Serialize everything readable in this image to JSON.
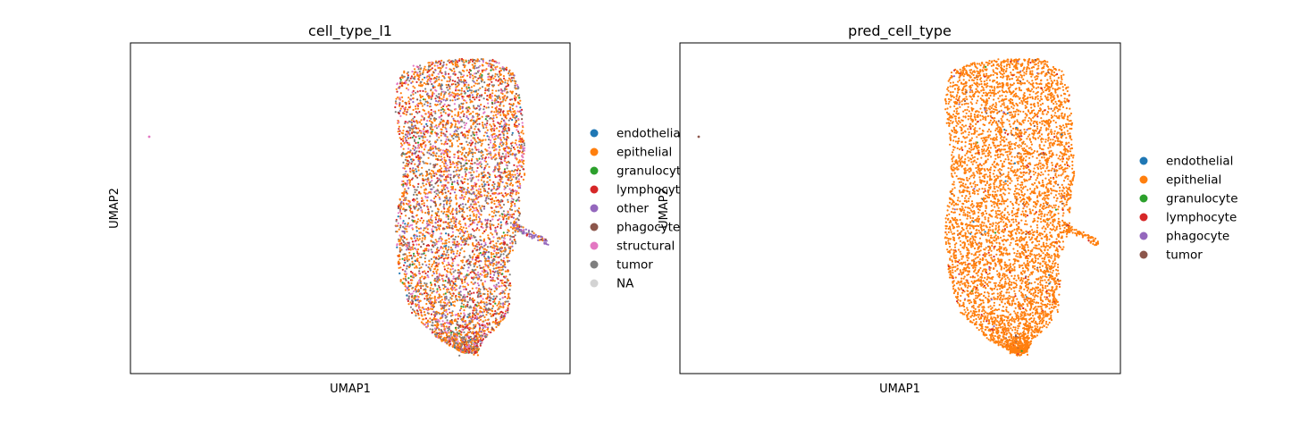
{
  "chart_data": [
    {
      "type": "scatter",
      "title": "cell_type_l1",
      "xlabel": "UMAP1",
      "ylabel": "UMAP2",
      "grid": false,
      "axis_ticks": false,
      "legend_placement": "right",
      "legend": [
        {
          "name": "endothelial",
          "color": "#1f77b4"
        },
        {
          "name": "epithelial",
          "color": "#ff7f0e"
        },
        {
          "name": "granulocyte",
          "color": "#2ca02c"
        },
        {
          "name": "lymphocyte",
          "color": "#d62728"
        },
        {
          "name": "other",
          "color": "#9467bd"
        },
        {
          "name": "phagocyte",
          "color": "#8c564b"
        },
        {
          "name": "structural",
          "color": "#e377c2"
        },
        {
          "name": "tumor",
          "color": "#7f7f7f"
        },
        {
          "name": "NA",
          "color": "#d3d3d3"
        }
      ],
      "mix_weights": [
        1,
        38,
        1,
        12,
        4,
        3,
        10,
        18,
        0
      ]
    },
    {
      "type": "scatter",
      "title": "pred_cell_type",
      "xlabel": "UMAP1",
      "ylabel": "UMAP2",
      "grid": false,
      "axis_ticks": false,
      "legend_placement": "right",
      "legend": [
        {
          "name": "endothelial",
          "color": "#1f77b4"
        },
        {
          "name": "epithelial",
          "color": "#ff7f0e"
        },
        {
          "name": "granulocyte",
          "color": "#2ca02c"
        },
        {
          "name": "lymphocyte",
          "color": "#d62728"
        },
        {
          "name": "phagocyte",
          "color": "#9467bd"
        },
        {
          "name": "tumor",
          "color": "#8c564b"
        }
      ],
      "mix_weights": [
        0.3,
        96,
        0.2,
        2,
        0.5,
        1
      ]
    }
  ]
}
